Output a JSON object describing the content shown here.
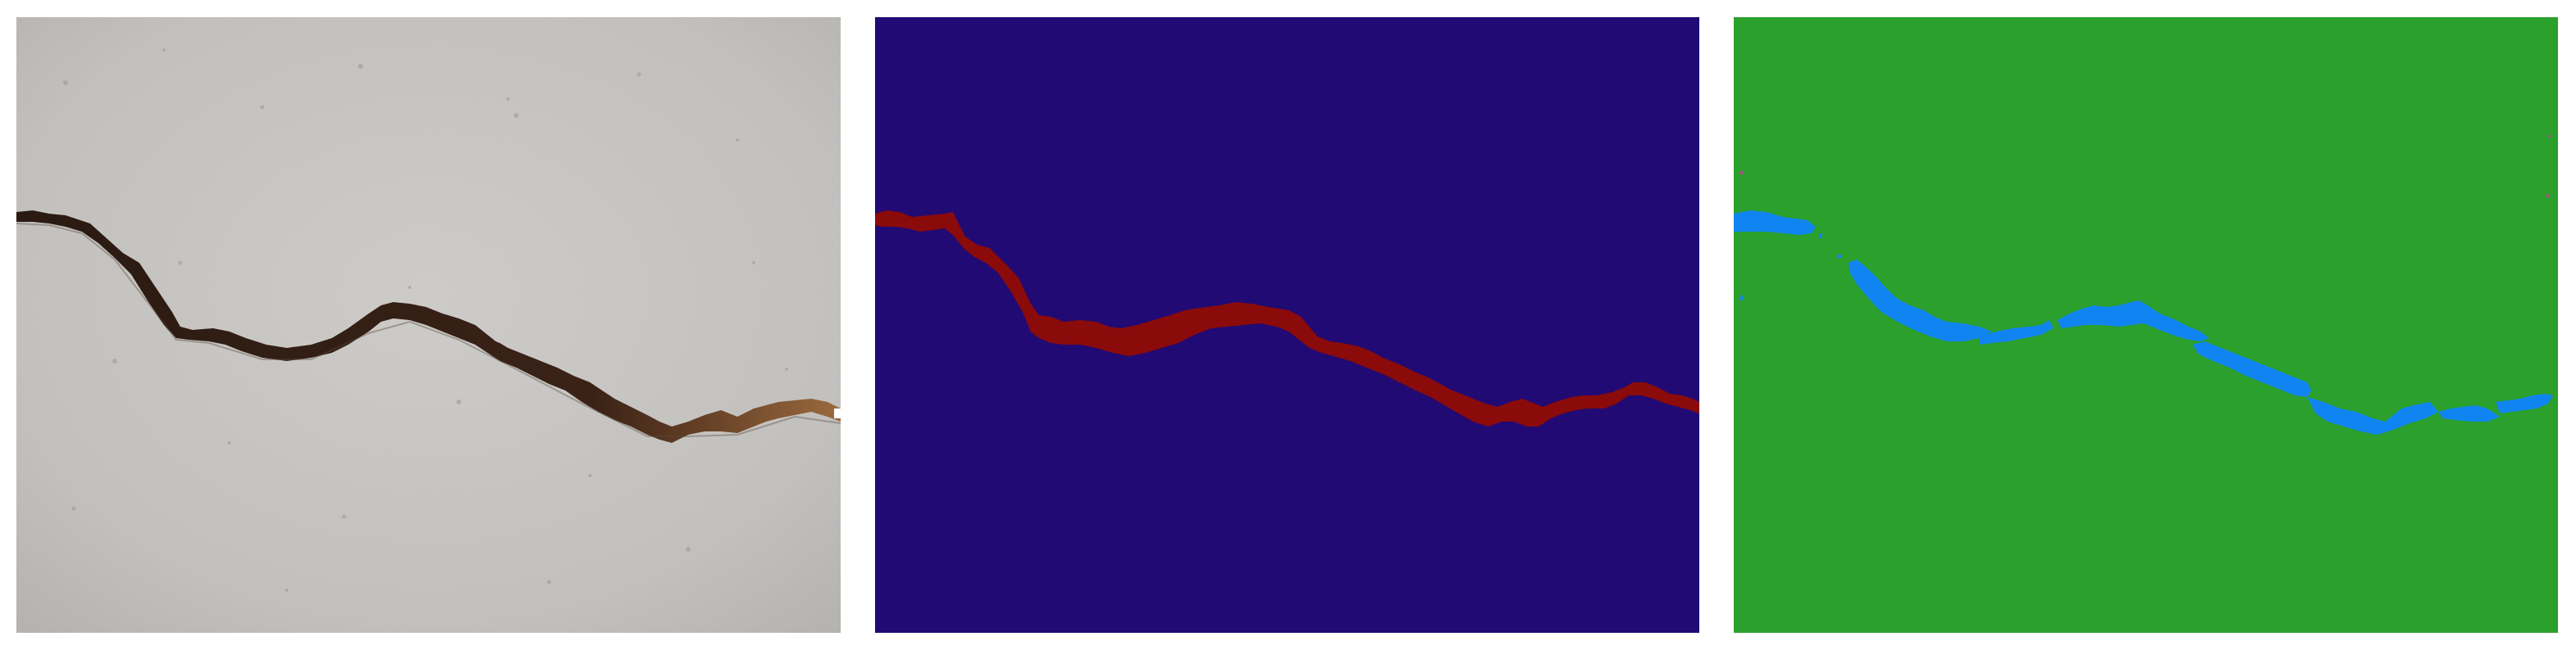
{
  "panels": [
    {
      "key": "photo",
      "kind": "concrete-surface-photograph",
      "background_color": "#c8c6c3",
      "crack_color": "#2a1a12"
    },
    {
      "key": "ground_truth",
      "kind": "segmentation-mask",
      "background_color": "#210a73",
      "crack_color": "#8b0a0a"
    },
    {
      "key": "prediction",
      "kind": "segmentation-mask",
      "background_color": "#2ca02c",
      "crack_color": "#1084f0"
    }
  ],
  "colors": {
    "page_background": "#ffffff",
    "photo_grain_dark": "#8f8c88",
    "photo_grain_light": "#e2e0dd",
    "crack_tail_brown": "#9a6a3e",
    "prediction_speck": "#b34a8a"
  }
}
